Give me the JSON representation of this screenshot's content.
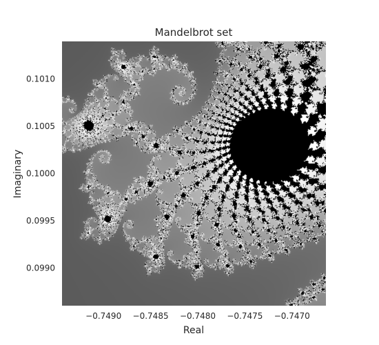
{
  "chart_data": {
    "type": "heatmap",
    "title": "Mandelbrot set",
    "xlabel": "Real",
    "ylabel": "Imaginary",
    "xlim": [
      -0.74944,
      -0.74664
    ],
    "ylim": [
      0.0986,
      0.1014
    ],
    "xticks": [
      -0.749,
      -0.7485,
      -0.748,
      -0.7475,
      -0.747
    ],
    "xtick_labels": [
      "−0.7490",
      "−0.7485",
      "−0.7480",
      "−0.7475",
      "−0.7470"
    ],
    "yticks": [
      0.099,
      0.0995,
      0.1,
      0.1005,
      0.101
    ],
    "ytick_labels": [
      "0.0990",
      "0.0995",
      "0.1000",
      "0.1005",
      "0.1010"
    ],
    "colormap": "gray",
    "grid": false,
    "max_iterations": 300
  }
}
